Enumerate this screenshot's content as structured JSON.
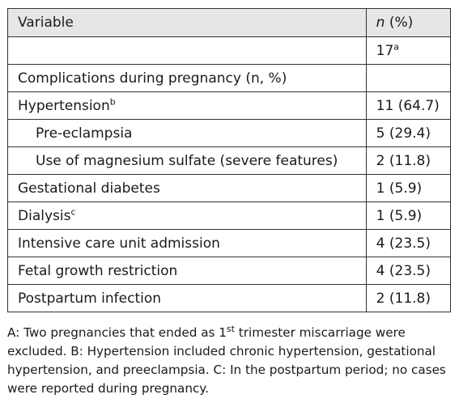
{
  "header": {
    "variable": "Variable",
    "n_italic": "n",
    "n_pct": " (%)"
  },
  "total_row": {
    "value": "17",
    "sup": "a"
  },
  "section_row": {
    "label": "Complications during pregnancy (n, %)"
  },
  "rows": [
    {
      "label": "Hypertension",
      "sup": "b",
      "value": "11 (64.7)"
    },
    {
      "label": "Pre-eclampsia",
      "value": "5 (29.4)"
    },
    {
      "label": "Use of magnesium sulfate (severe features)",
      "value": "2 (11.8)"
    },
    {
      "label": "Gestational diabetes",
      "value": "1 (5.9)"
    },
    {
      "label": "Dialysis",
      "sup": "c",
      "value": "1 (5.9)"
    },
    {
      "label": "Intensive care unit admission",
      "value": "4 (23.5)"
    },
    {
      "label": "Fetal growth restriction",
      "value": "4 (23.5)"
    },
    {
      "label": "Postpartum infection",
      "value": "2 (11.8)"
    }
  ],
  "footnote": {
    "a_pre": "A: Two pregnancies that ended as 1",
    "a_sup": "st",
    "a_post": " trimester miscarriage were excluded. B: Hypertension included chronic hypertension, gestational hypertension, and preeclampsia. C: In the postpartum period; no cases were reported during pregnancy."
  },
  "colors": {
    "header_bg": "#e6e6e6",
    "border": "#333333",
    "text": "#1a1a1a"
  }
}
